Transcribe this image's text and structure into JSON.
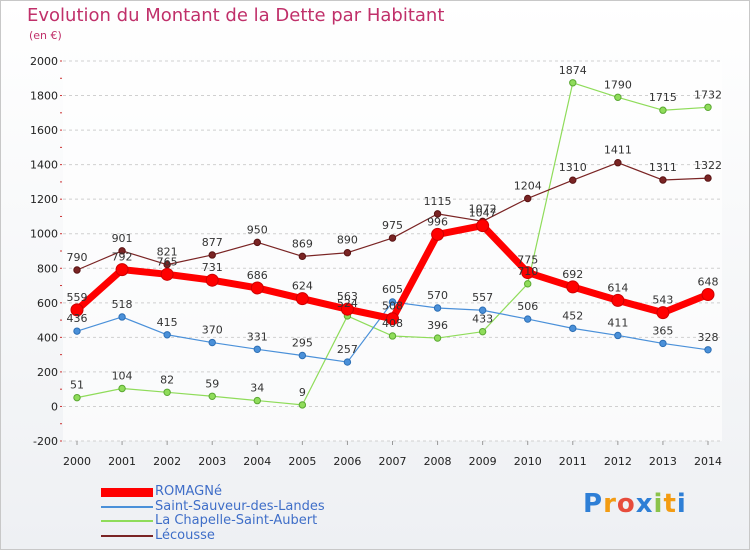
{
  "title": "Evolution du Montant de la Dette par Habitant",
  "unit": "(en €)",
  "logo": "Proxiti",
  "chart_data": {
    "type": "line",
    "title": "Evolution du Montant de la Dette par Habitant",
    "ylabel": "(en €)",
    "xlabel": "",
    "ylim": [
      -200,
      2000
    ],
    "yticks": [
      -200,
      0,
      200,
      400,
      600,
      800,
      1000,
      1200,
      1400,
      1600,
      1800,
      2000
    ],
    "grid": "horizontal",
    "legend_position": "bottom-left",
    "x": [
      "2000",
      "2001",
      "2002",
      "2003",
      "2004",
      "2005",
      "2006",
      "2007",
      "2008",
      "2009",
      "2010",
      "2011",
      "2012",
      "2013",
      "2014"
    ],
    "series": [
      {
        "name": "ROMAGNé",
        "color": "#ff0000",
        "values": [
          559,
          792,
          765,
          731,
          686,
          624,
          563,
          508,
          996,
          1047,
          775,
          692,
          614,
          543,
          648
        ]
      },
      {
        "name": "Saint-Sauveur-des-Landes",
        "color": "#4a90d9",
        "values": [
          436,
          518,
          415,
          370,
          331,
          295,
          257,
          605,
          570,
          557,
          506,
          452,
          411,
          365,
          328
        ]
      },
      {
        "name": "La Chapelle-Saint-Aubert",
        "color": "#8fdc5a",
        "values": [
          51,
          104,
          82,
          59,
          34,
          9,
          524,
          408,
          396,
          433,
          710,
          1874,
          1790,
          1715,
          1732
        ]
      },
      {
        "name": "Lécousse",
        "color": "#7a2424",
        "values": [
          790,
          901,
          821,
          877,
          950,
          869,
          890,
          975,
          1115,
          1072,
          1204,
          1310,
          1411,
          1311,
          1322
        ]
      }
    ]
  }
}
